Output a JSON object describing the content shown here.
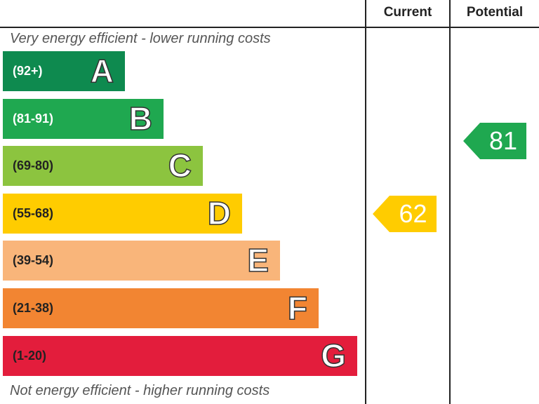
{
  "header": {
    "current_label": "Current",
    "potential_label": "Potential"
  },
  "chart_data": {
    "type": "bar",
    "top_caption": "Very energy efficient - lower running costs",
    "bottom_caption": "Not energy efficient - higher running costs",
    "bands": [
      {
        "letter": "A",
        "range": "(92+)",
        "color": "#0e8a4f",
        "text_color": "#ffffff"
      },
      {
        "letter": "B",
        "range": "(81-91)",
        "color": "#1fa850",
        "text_color": "#ffffff"
      },
      {
        "letter": "C",
        "range": "(69-80)",
        "color": "#8cc43f",
        "text_color": "#222222"
      },
      {
        "letter": "D",
        "range": "(55-68)",
        "color": "#ffcc00",
        "text_color": "#222222"
      },
      {
        "letter": "E",
        "range": "(39-54)",
        "color": "#f9b57a",
        "text_color": "#222222"
      },
      {
        "letter": "F",
        "range": "(21-38)",
        "color": "#f28532",
        "text_color": "#222222"
      },
      {
        "letter": "G",
        "range": "(1-20)",
        "color": "#e31d3c",
        "text_color": "#222222"
      }
    ],
    "current": {
      "value": 62,
      "band": "D",
      "color": "#ffcc00"
    },
    "potential": {
      "value": 81,
      "band": "B",
      "color": "#1fa850"
    }
  }
}
